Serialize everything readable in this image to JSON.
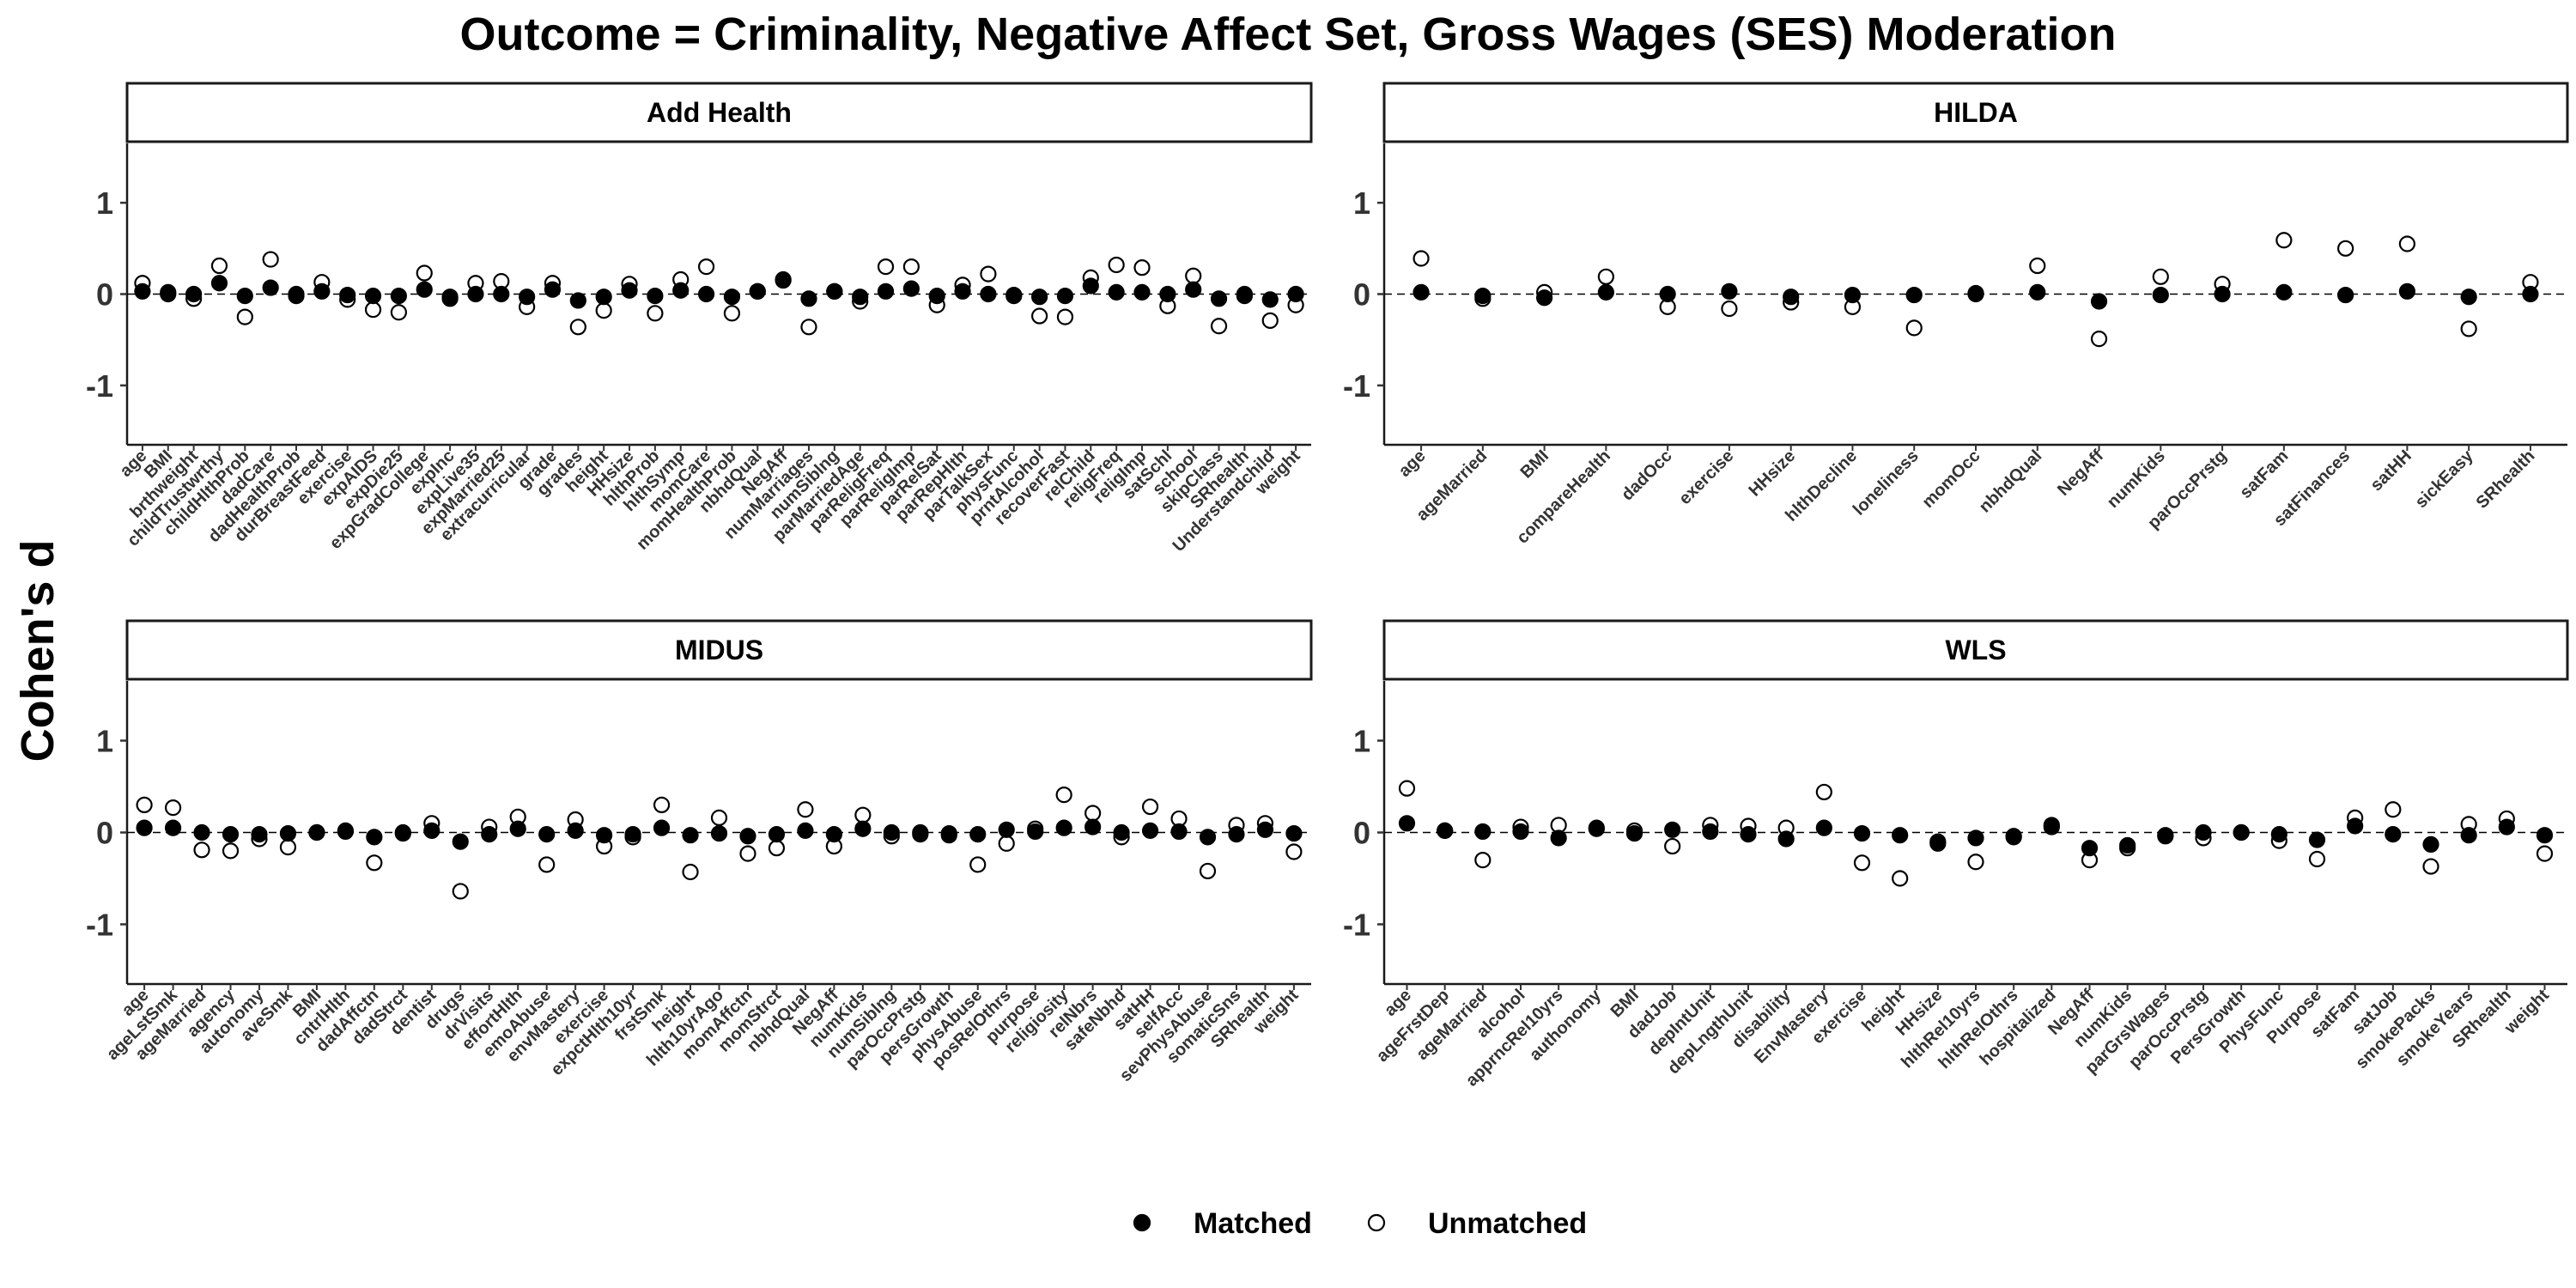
{
  "figure": {
    "title": "Outcome = Criminality, Negative Affect Set, Gross Wages (SES) Moderation",
    "ylabel": "Cohen's d"
  },
  "legend": {
    "position": "bottom",
    "items": [
      {
        "label": "Matched",
        "marker": "filled-circle",
        "color": "#000000"
      },
      {
        "label": "Unmatched",
        "marker": "open-circle",
        "color": "#000000"
      }
    ]
  },
  "chart_data": [
    {
      "type": "scatter",
      "panel": "Add Health",
      "ylim": [
        -1.65,
        1.65
      ],
      "yticks": [
        -1,
        0,
        1
      ],
      "reference_line": 0,
      "categories": [
        "age",
        "BMI",
        "brthweight",
        "childTrustwrthy",
        "childHlthProb",
        "dadCare",
        "dadHealthProb",
        "durBreastFeed",
        "exercise",
        "expAIDS",
        "expDie25",
        "expGradCollege",
        "expInc",
        "expLive35",
        "expMarried25",
        "extracurricular",
        "grade",
        "grades",
        "height",
        "HHsize",
        "hlthProb",
        "hlthSymp",
        "momCare",
        "momHealthProb",
        "nbhdQual",
        "NegAff",
        "numMarriages",
        "numSiblng",
        "parMarriedAge",
        "parReligFreq",
        "parReligImp",
        "parRelSat",
        "parRepHlth",
        "parTalkSex",
        "physFunc",
        "prntAlcohol",
        "recoverFast",
        "relChild",
        "religFreq",
        "religImp",
        "satSchl",
        "school",
        "skipClass",
        "SRhealth",
        "Understandchild",
        "weight"
      ],
      "series": [
        {
          "name": "Matched",
          "values": [
            0.03,
            0.02,
            0.0,
            0.12,
            -0.02,
            0.07,
            -0.02,
            0.03,
            -0.01,
            -0.02,
            -0.02,
            0.05,
            -0.03,
            0.0,
            0.0,
            -0.03,
            0.05,
            -0.07,
            -0.03,
            0.04,
            -0.02,
            0.04,
            0.0,
            -0.03,
            0.03,
            0.15,
            -0.05,
            0.03,
            -0.03,
            0.03,
            0.06,
            -0.02,
            0.03,
            0.0,
            -0.01,
            -0.03,
            -0.02,
            0.09,
            0.02,
            0.02,
            0.0,
            0.05,
            -0.05,
            0.0,
            -0.06,
            0.0
          ]
        },
        {
          "name": "Unmatched",
          "values": [
            0.12,
            0.0,
            -0.05,
            0.31,
            -0.25,
            0.38,
            0.0,
            0.13,
            -0.06,
            -0.17,
            -0.2,
            0.23,
            -0.05,
            0.12,
            0.14,
            -0.14,
            0.12,
            -0.36,
            -0.18,
            0.11,
            -0.21,
            0.16,
            0.3,
            -0.21,
            0.03,
            0.16,
            -0.36,
            0.03,
            -0.08,
            0.3,
            0.3,
            -0.12,
            0.1,
            0.22,
            -0.02,
            -0.24,
            -0.25,
            0.18,
            0.32,
            0.29,
            -0.13,
            0.2,
            -0.35,
            -0.02,
            -0.29,
            -0.12
          ]
        }
      ]
    },
    {
      "type": "scatter",
      "panel": "HILDA",
      "ylim": [
        -1.65,
        1.65
      ],
      "yticks": [
        -1,
        0,
        1
      ],
      "reference_line": 0,
      "categories": [
        "age",
        "ageMarried",
        "BMI",
        "compareHealth",
        "dadOcc",
        "exercise",
        "HHsize",
        "hlthDecline",
        "loneliness",
        "momOcc",
        "nbhdQual",
        "NegAff",
        "numKids",
        "parOccPrstg",
        "satFam",
        "satFinances",
        "satHH",
        "sickEasy",
        "SRhealth"
      ],
      "series": [
        {
          "name": "Matched",
          "values": [
            0.02,
            -0.02,
            -0.04,
            0.02,
            0.0,
            0.03,
            -0.03,
            -0.01,
            -0.01,
            0.01,
            0.02,
            -0.08,
            -0.01,
            0.0,
            0.02,
            -0.01,
            0.03,
            -0.03,
            0.0
          ]
        },
        {
          "name": "Unmatched",
          "values": [
            0.39,
            -0.05,
            0.02,
            0.19,
            -0.14,
            -0.16,
            -0.09,
            -0.14,
            -0.37,
            0.0,
            0.31,
            -0.49,
            0.19,
            0.11,
            0.59,
            0.5,
            0.55,
            -0.38,
            0.13
          ]
        }
      ]
    },
    {
      "type": "scatter",
      "panel": "MIDUS",
      "ylim": [
        -1.65,
        1.65
      ],
      "yticks": [
        -1,
        0,
        1
      ],
      "reference_line": 0,
      "categories": [
        "age",
        "ageLstSmk",
        "ageMarried",
        "agency",
        "autonomy",
        "aveSmk",
        "BMI",
        "cntrlHlth",
        "dadAffctn",
        "dadStrct",
        "dentist",
        "drugs",
        "drVisits",
        "effortHlth",
        "emoAbuse",
        "envMastery",
        "exercise",
        "expctHlth10yr",
        "frstSmk",
        "height",
        "hlth10yrAgo",
        "momAffctn",
        "momStrct",
        "nbhdQual",
        "NegAff",
        "numKids",
        "numSiblng",
        "parOccPrstg",
        "persGrowth",
        "physAbuse",
        "posRelOthrs",
        "purpose",
        "religiosity",
        "relNbrs",
        "safeNbhd",
        "satHH",
        "selfAcc",
        "sevPhysAbuse",
        "somaticSns",
        "SRhealth",
        "weight"
      ],
      "series": [
        {
          "name": "Matched",
          "values": [
            0.05,
            0.05,
            0.0,
            -0.02,
            -0.02,
            -0.01,
            0.0,
            0.02,
            -0.05,
            -0.01,
            0.02,
            -0.1,
            -0.02,
            0.04,
            -0.02,
            0.02,
            -0.03,
            -0.02,
            0.05,
            -0.03,
            -0.01,
            -0.04,
            -0.02,
            0.02,
            -0.02,
            0.04,
            0.0,
            0.0,
            -0.01,
            -0.02,
            0.03,
            0.01,
            0.05,
            0.06,
            0.0,
            0.02,
            0.01,
            -0.05,
            -0.02,
            0.03,
            -0.01
          ]
        },
        {
          "name": "Unmatched",
          "values": [
            0.3,
            0.27,
            -0.19,
            -0.2,
            -0.07,
            -0.16,
            0.0,
            0.01,
            -0.33,
            0.0,
            0.1,
            -0.64,
            0.06,
            0.17,
            -0.35,
            0.14,
            -0.15,
            -0.05,
            0.3,
            -0.43,
            0.16,
            -0.23,
            -0.17,
            0.25,
            -0.15,
            0.19,
            -0.04,
            -0.02,
            -0.03,
            -0.35,
            -0.12,
            0.04,
            0.41,
            0.21,
            -0.05,
            0.28,
            0.15,
            -0.42,
            0.08,
            0.1,
            -0.21
          ]
        }
      ]
    },
    {
      "type": "scatter",
      "panel": "WLS",
      "ylim": [
        -1.65,
        1.65
      ],
      "yticks": [
        -1,
        0,
        1
      ],
      "reference_line": 0,
      "categories": [
        "age",
        "ageFrstDep",
        "ageMarried",
        "alcohol",
        "apprncRel10yrs",
        "authonomy",
        "BMI",
        "dadJob",
        "depIntUnit",
        "depLngthUnit",
        "disability",
        "EnvMastery",
        "exercise",
        "height",
        "HHsize",
        "hlthRel10yrs",
        "hlthRelOthrs",
        "hospitalized",
        "NegAff",
        "numKids",
        "parGrsWages",
        "parOccPrstg",
        "PersGrowth",
        "PhysFunc",
        "Purpose",
        "satFam",
        "satJob",
        "smokePacks",
        "smokeYears",
        "SRhealth",
        "weight"
      ],
      "series": [
        {
          "name": "Matched",
          "values": [
            0.1,
            0.02,
            0.01,
            0.01,
            -0.06,
            0.04,
            -0.01,
            0.03,
            0.01,
            -0.02,
            -0.07,
            0.05,
            -0.01,
            -0.03,
            -0.12,
            -0.06,
            -0.05,
            0.08,
            -0.17,
            -0.14,
            -0.03,
            0.0,
            0.0,
            -0.02,
            -0.08,
            0.07,
            -0.02,
            -0.13,
            -0.03,
            0.06,
            -0.03
          ]
        },
        {
          "name": "Unmatched",
          "values": [
            0.48,
            0.02,
            -0.3,
            0.06,
            0.08,
            0.05,
            0.02,
            -0.15,
            0.08,
            0.07,
            0.05,
            0.44,
            -0.33,
            -0.5,
            -0.1,
            -0.32,
            -0.04,
            0.06,
            -0.3,
            -0.17,
            -0.04,
            -0.06,
            0.0,
            -0.09,
            -0.29,
            0.16,
            0.25,
            -0.37,
            0.09,
            0.15,
            -0.23
          ]
        }
      ]
    }
  ]
}
